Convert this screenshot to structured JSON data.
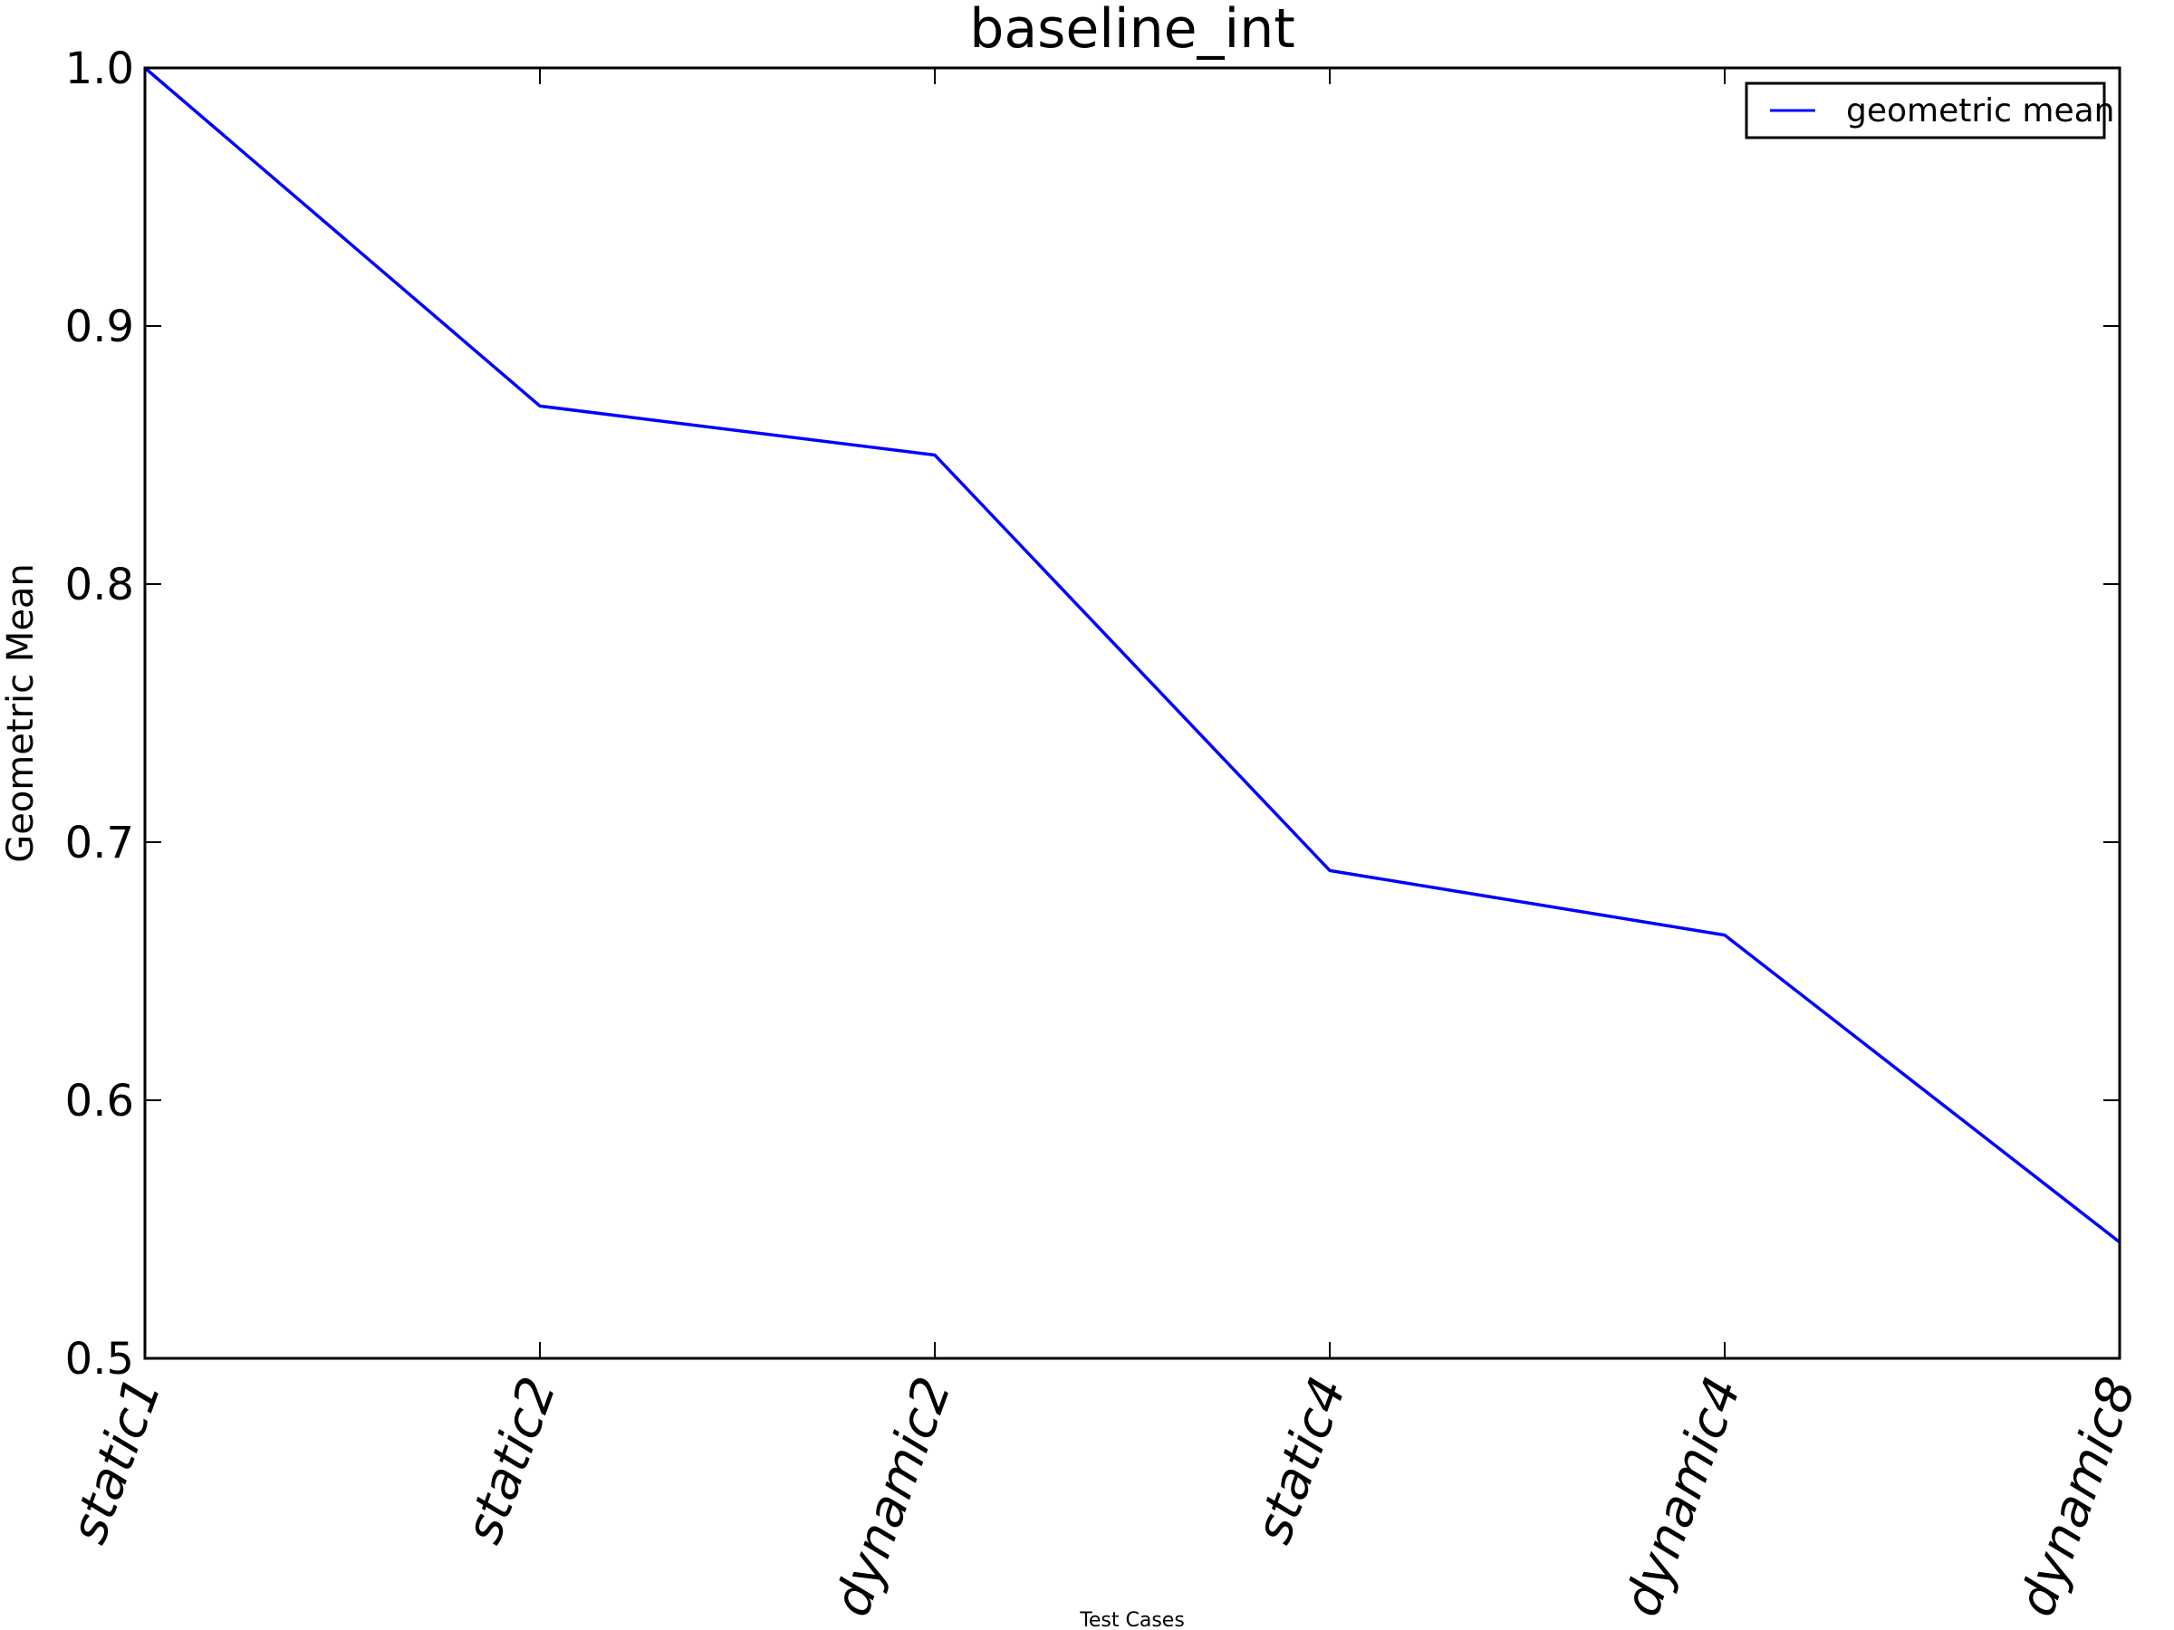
{
  "chart_data": {
    "type": "line",
    "title": "baseline_int",
    "xlabel": "Test Cases",
    "ylabel": "Geometric Mean",
    "categories": [
      "static1",
      "static2",
      "dynamic2",
      "static4",
      "dynamic4",
      "dynamic8"
    ],
    "series": [
      {
        "name": "geometric mean",
        "values": [
          1.0,
          0.869,
          0.85,
          0.689,
          0.664,
          0.545
        ],
        "color": "#0000ff"
      }
    ],
    "ylim": [
      0.5,
      1.0
    ],
    "yticks": [
      "0.5",
      "0.6",
      "0.7",
      "0.8",
      "0.9",
      "1.0"
    ],
    "grid": false,
    "legend_position": "top-right"
  }
}
